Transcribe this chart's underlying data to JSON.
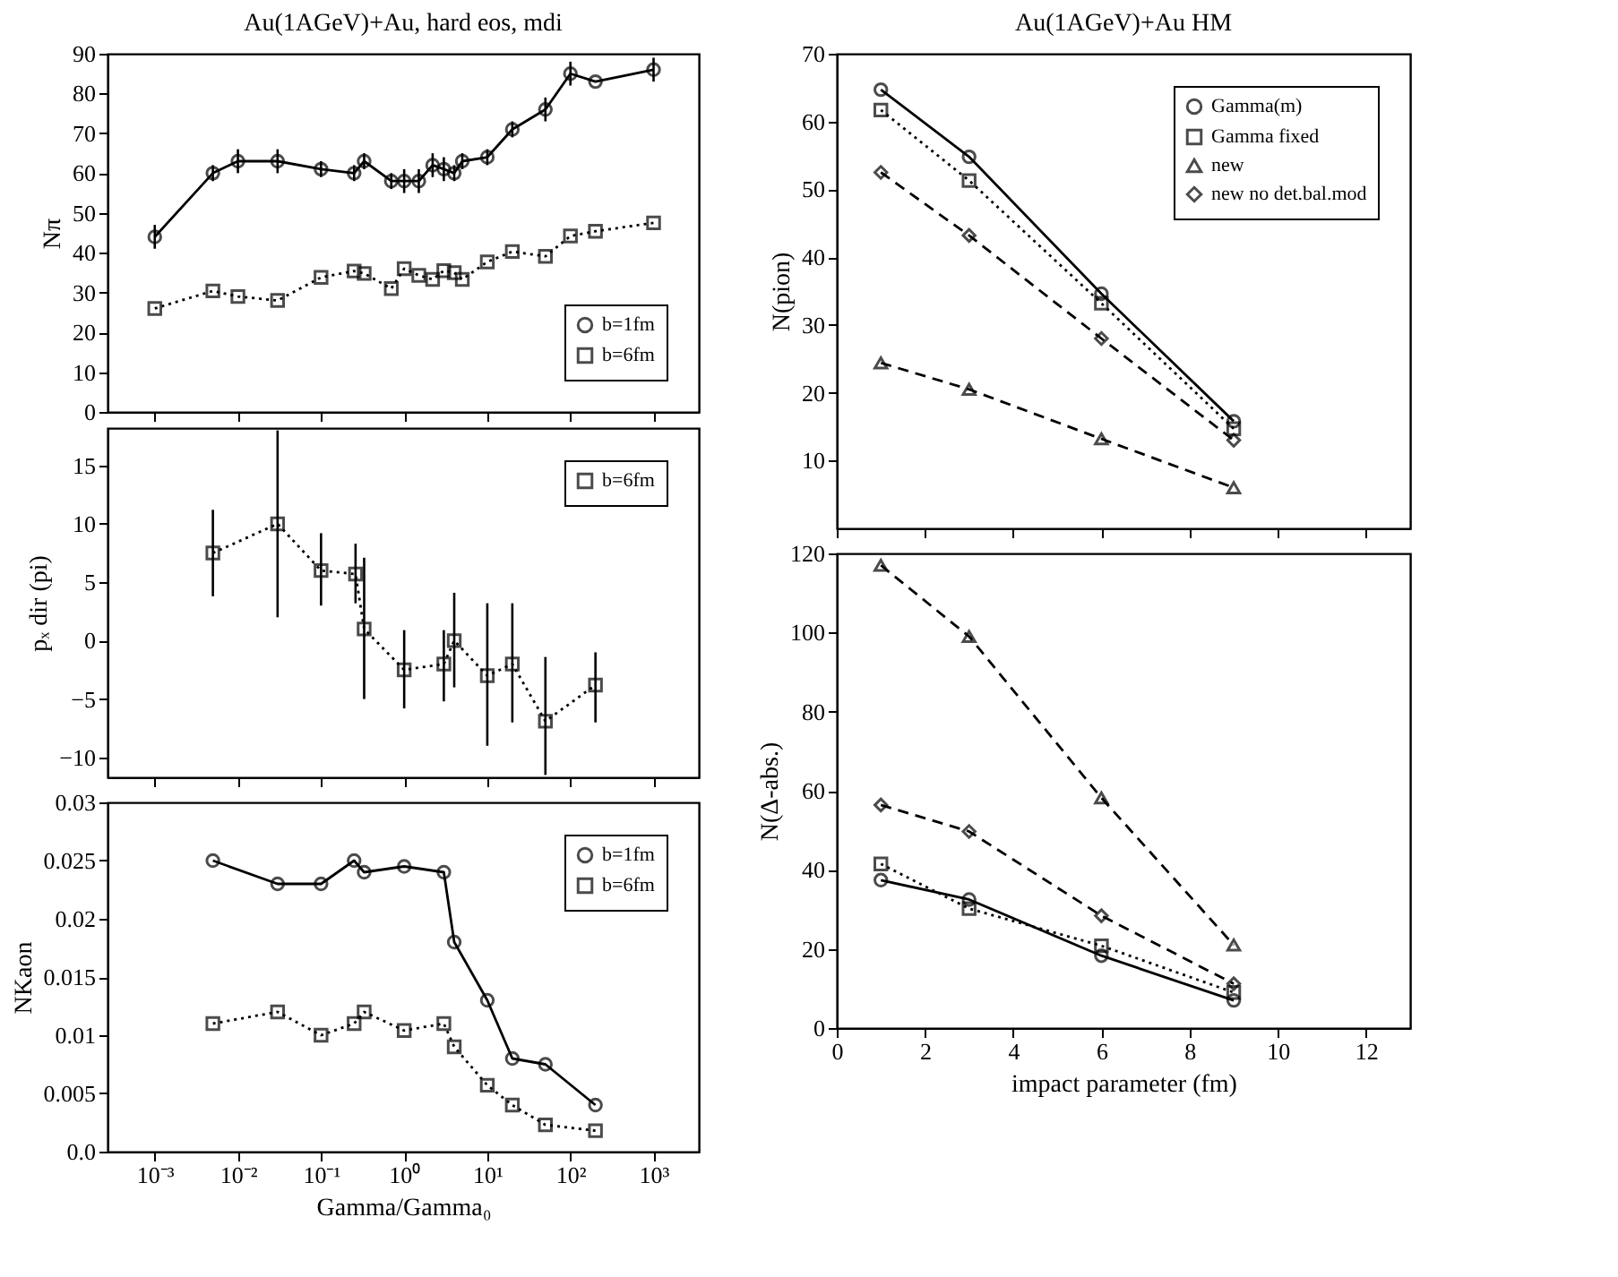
{
  "chart_data": [
    {
      "type": "line",
      "title": "Au(1AGeV)+Au, hard eos, mdi",
      "ylabel": "Nπ",
      "log": "x",
      "tick_labels": "y",
      "legend": "bottom right",
      "xlim": [
        0.00027,
        3500
      ],
      "xticks": [
        {
          "value": 0.001,
          "label": null
        },
        {
          "value": 0.01,
          "label": null
        },
        {
          "value": 0.1,
          "label": null
        },
        {
          "value": 1,
          "label": null
        },
        {
          "value": 10,
          "label": null
        },
        {
          "value": 100,
          "label": null
        },
        {
          "value": 1000,
          "label": null
        }
      ],
      "ylim": [
        0,
        90
      ],
      "yticks": [
        0,
        10,
        20,
        30,
        40,
        50,
        60,
        70,
        80,
        90
      ],
      "x": [
        0.001,
        0.005,
        0.01,
        0.03,
        0.1,
        0.25,
        0.33,
        0.7,
        1,
        1.5,
        2.2,
        3,
        4,
        5,
        10,
        20,
        50,
        100,
        200,
        1000
      ],
      "series": [
        {
          "name": "b=1fm",
          "color": "#000000",
          "marker": "circle",
          "line_style": "solid",
          "values": [
            44,
            60,
            63,
            63,
            61,
            60,
            63,
            58,
            58,
            58,
            62,
            61,
            60,
            63,
            64,
            71,
            76,
            85,
            83,
            86
          ],
          "errors": [
            3,
            2,
            3,
            3,
            2,
            2,
            2,
            2,
            3,
            3,
            3,
            3,
            2,
            2,
            2,
            2,
            3,
            3,
            null,
            3
          ]
        },
        {
          "name": "b=6fm",
          "color": "#000000",
          "marker": "square",
          "line_style": "dotted",
          "values": [
            26,
            30.4,
            29,
            28,
            33.8,
            35.4,
            34.8,
            31,
            36,
            34.3,
            33.3,
            35.5,
            35,
            33.3,
            37.7,
            40.3,
            39.1,
            44.2,
            45.4,
            47.5
          ]
        }
      ]
    },
    {
      "type": "line",
      "ylabel": "pₓ dir (pi)",
      "log": "x",
      "tick_labels": "y",
      "legend": "top right",
      "xlim": [
        0.00027,
        3500
      ],
      "xticks": [
        {
          "value": 0.001,
          "label": null
        },
        {
          "value": 0.01,
          "label": null
        },
        {
          "value": 0.1,
          "label": null
        },
        {
          "value": 1,
          "label": null
        },
        {
          "value": 10,
          "label": null
        },
        {
          "value": 100,
          "label": null
        },
        {
          "value": 1000,
          "label": null
        }
      ],
      "ylim": [
        -11.7,
        18.2
      ],
      "yticks": [
        -10,
        -5,
        0,
        5,
        10,
        15
      ],
      "x": [
        0.005,
        0.03,
        0.1,
        0.26,
        0.33,
        1,
        3,
        4,
        10,
        20,
        50,
        200
      ],
      "series": [
        {
          "name": "b=6fm",
          "color": "#000000",
          "marker": "square",
          "line_style": "dotted",
          "values": [
            7.5,
            10,
            6,
            5.7,
            1,
            -2.5,
            -2,
            0,
            -3,
            -2,
            -6.9,
            -3.8
          ],
          "errors": [
            [
              3.8,
              11.2
            ],
            [
              2,
              18
            ],
            [
              3,
              9.2
            ],
            [
              3.2,
              8.3
            ],
            [
              -5,
              7.1
            ],
            [
              -5.8,
              0.9
            ],
            [
              -5.2,
              0.9
            ],
            [
              -4,
              4.1
            ],
            [
              -9,
              3.2
            ],
            [
              -7,
              3.2
            ],
            [
              -11.5,
              -1.4
            ],
            [
              -7,
              -1
            ]
          ]
        }
      ]
    },
    {
      "type": "line",
      "xlabel": "Gamma/Gamma₀",
      "ylabel": "NKaon",
      "log": "x",
      "legend": "top right",
      "xlim": [
        0.00027,
        3500
      ],
      "xticks": [
        {
          "value": 0.001,
          "label": "10⁻³"
        },
        {
          "value": 0.01,
          "label": "10⁻²"
        },
        {
          "value": 0.1,
          "label": "10⁻¹"
        },
        {
          "value": 1,
          "label": "10⁰"
        },
        {
          "value": 10,
          "label": "10¹"
        },
        {
          "value": 100,
          "label": "10²"
        },
        {
          "value": 1000,
          "label": "10³"
        }
      ],
      "ylim": [
        0,
        0.03
      ],
      "yticks": [
        {
          "value": 0,
          "label": "0.0"
        },
        0.005,
        0.01,
        0.015,
        0.02,
        0.025,
        0.03
      ],
      "x": [
        0.005,
        0.03,
        0.1,
        0.25,
        0.33,
        1,
        3,
        4,
        10,
        20,
        50,
        200
      ],
      "series": [
        {
          "name": "b=1fm",
          "color": "#000000",
          "marker": "circle",
          "line_style": "solid",
          "values": [
            0.025,
            0.023,
            0.023,
            0.025,
            0.024,
            0.0245,
            0.024,
            0.018,
            0.013,
            0.008,
            0.0075,
            0.004
          ]
        },
        {
          "name": "b=6fm",
          "color": "#000000",
          "marker": "square",
          "line_style": "dotted",
          "values": [
            0.011,
            0.012,
            0.01,
            0.011,
            0.012,
            0.0104,
            0.011,
            0.009,
            0.0057,
            0.004,
            0.0023,
            0.0018
          ]
        }
      ]
    },
    {
      "type": "line",
      "title": "Au(1AGeV)+Au HM",
      "ylabel": "N(pion)",
      "tick_labels": "y",
      "legend": "top right",
      "xlim": [
        0,
        13
      ],
      "xticks": [
        0,
        2,
        4,
        6,
        8,
        10,
        12
      ],
      "ylim": [
        0,
        70
      ],
      "yticks": [
        10,
        20,
        30,
        40,
        50,
        60,
        70
      ],
      "x": [
        1,
        3,
        6,
        9
      ],
      "series": [
        {
          "name": "Gamma(m)",
          "color": "#000000",
          "marker": "circle",
          "line_style": "solid",
          "values": [
            64.7,
            54.8,
            34.6,
            15.8
          ]
        },
        {
          "name": "Gamma fixed",
          "color": "#000000",
          "marker": "square",
          "line_style": "dotted",
          "values": [
            61.7,
            51.3,
            33.2,
            14.7
          ]
        },
        {
          "name": "new",
          "color": "#000000",
          "marker": "triangle",
          "line_style": "dashed",
          "values": [
            24.4,
            20.5,
            13.2,
            6
          ]
        },
        {
          "name": "new no det.bal.mod",
          "color": "#000000",
          "marker": "diamond",
          "line_style": "dashed",
          "values": [
            52.5,
            43.2,
            28,
            13
          ]
        }
      ]
    },
    {
      "type": "line",
      "xlabel": "impact parameter (fm)",
      "ylabel": "N(Δ-abs.)",
      "xlim": [
        0,
        13
      ],
      "xticks": [
        0,
        2,
        4,
        6,
        8,
        10,
        12
      ],
      "ylim": [
        0,
        120
      ],
      "yticks": [
        0,
        20,
        40,
        60,
        80,
        100,
        120
      ],
      "x": [
        1,
        3,
        6,
        9
      ],
      "series": [
        {
          "color": "#000000",
          "marker": "circle",
          "line_style": "solid",
          "values": [
            37.4,
            32.5,
            18.3,
            7
          ]
        },
        {
          "color": "#000000",
          "marker": "square",
          "line_style": "dotted",
          "values": [
            41.5,
            30.2,
            20.8,
            9
          ]
        },
        {
          "color": "#000000",
          "marker": "triangle",
          "line_style": "dashed",
          "values": [
            117,
            99,
            58.2,
            21
          ]
        },
        {
          "color": "#000000",
          "marker": "diamond",
          "line_style": "dashed",
          "values": [
            56.4,
            49.7,
            28.4,
            11.2
          ]
        }
      ]
    }
  ]
}
